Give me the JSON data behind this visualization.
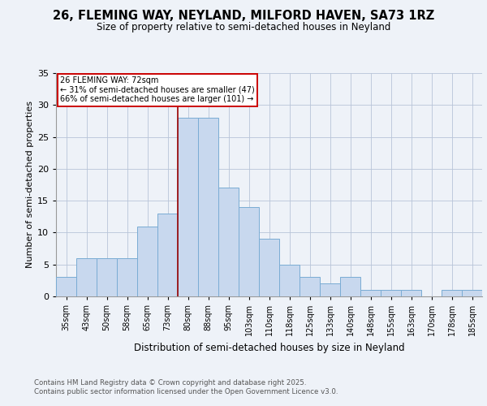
{
  "title1": "26, FLEMING WAY, NEYLAND, MILFORD HAVEN, SA73 1RZ",
  "title2": "Size of property relative to semi-detached houses in Neyland",
  "xlabel": "Distribution of semi-detached houses by size in Neyland",
  "ylabel": "Number of semi-detached properties",
  "categories": [
    "35sqm",
    "43sqm",
    "50sqm",
    "58sqm",
    "65sqm",
    "73sqm",
    "80sqm",
    "88sqm",
    "95sqm",
    "103sqm",
    "110sqm",
    "118sqm",
    "125sqm",
    "133sqm",
    "140sqm",
    "148sqm",
    "155sqm",
    "163sqm",
    "170sqm",
    "178sqm",
    "185sqm"
  ],
  "values": [
    3,
    6,
    6,
    6,
    11,
    13,
    28,
    28,
    17,
    14,
    9,
    5,
    3,
    2,
    3,
    1,
    1,
    1,
    0,
    1,
    1
  ],
  "bar_color": "#c8d8ee",
  "bar_edge_color": "#7aacd4",
  "pct_smaller": "31%",
  "pct_smaller_n": 47,
  "pct_larger": "66%",
  "pct_larger_n": 101,
  "annotation_box_color": "#ffffff",
  "annotation_box_edge": "#cc0000",
  "vline_color": "#990000",
  "vline_x": 5.5,
  "ylim": [
    0,
    35
  ],
  "yticks": [
    0,
    5,
    10,
    15,
    20,
    25,
    30,
    35
  ],
  "footnote": "Contains HM Land Registry data © Crown copyright and database right 2025.\nContains public sector information licensed under the Open Government Licence v3.0.",
  "bg_color": "#eef2f8"
}
